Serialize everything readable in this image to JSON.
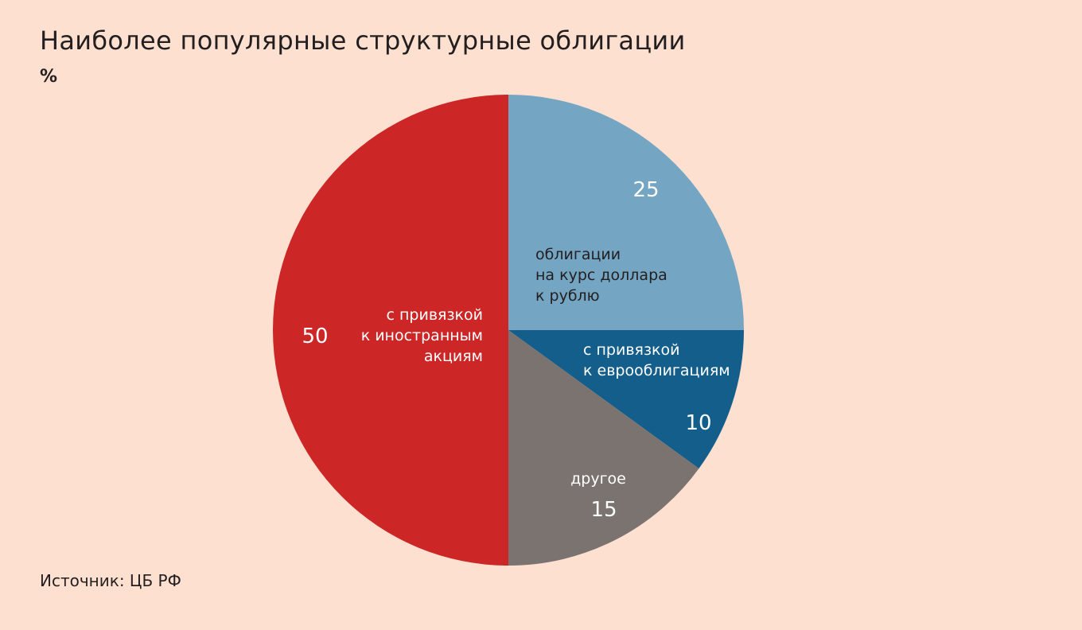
{
  "title": "Наиболее популярные структурные облигации",
  "unit": "%",
  "source": "Источник: ЦБ РФ",
  "chart_data": {
    "type": "pie",
    "title": "Наиболее популярные структурные облигации",
    "unit": "%",
    "slices": [
      {
        "id": "usd",
        "label_lines": [
          "облигации",
          "на курс доллара",
          "к рублю"
        ],
        "value": 25,
        "color": "#74a5c2",
        "label_color": "#231f20"
      },
      {
        "id": "euro",
        "label_lines": [
          "с привязкой",
          "к еврооблигациям"
        ],
        "value": 10,
        "color": "#135e8a",
        "label_color": "#ffffff"
      },
      {
        "id": "other",
        "label_lines": [
          "другое"
        ],
        "value": 15,
        "color": "#7b7370",
        "label_color": "#ffffff"
      },
      {
        "id": "stocks",
        "label_lines": [
          "с привязкой",
          "к иностранным",
          "акциям"
        ],
        "value": 50,
        "color": "#cc2627",
        "label_color": "#ffffff"
      }
    ]
  }
}
